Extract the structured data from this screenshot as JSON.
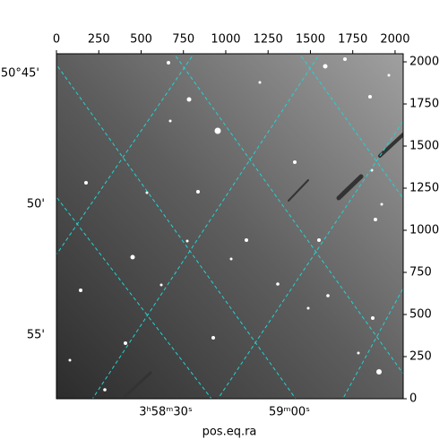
{
  "chart_data": {
    "type": "image",
    "xlim": [
      0,
      2048
    ],
    "ylim": [
      0,
      2048
    ],
    "xticks": [
      0,
      250,
      500,
      750,
      1000,
      1250,
      1500,
      1750,
      2000
    ],
    "yticks": [
      0,
      250,
      500,
      750,
      1000,
      1250,
      1500,
      1750,
      2000
    ],
    "dec_tick_labels": [
      "50°45'",
      "50'",
      "55'"
    ],
    "ra_tick_labels": [
      "3ʰ58ᵐ30ˢ",
      "59ᵐ00ˢ"
    ],
    "xlabel": "pos.eq.ra",
    "grid": true
  }
}
